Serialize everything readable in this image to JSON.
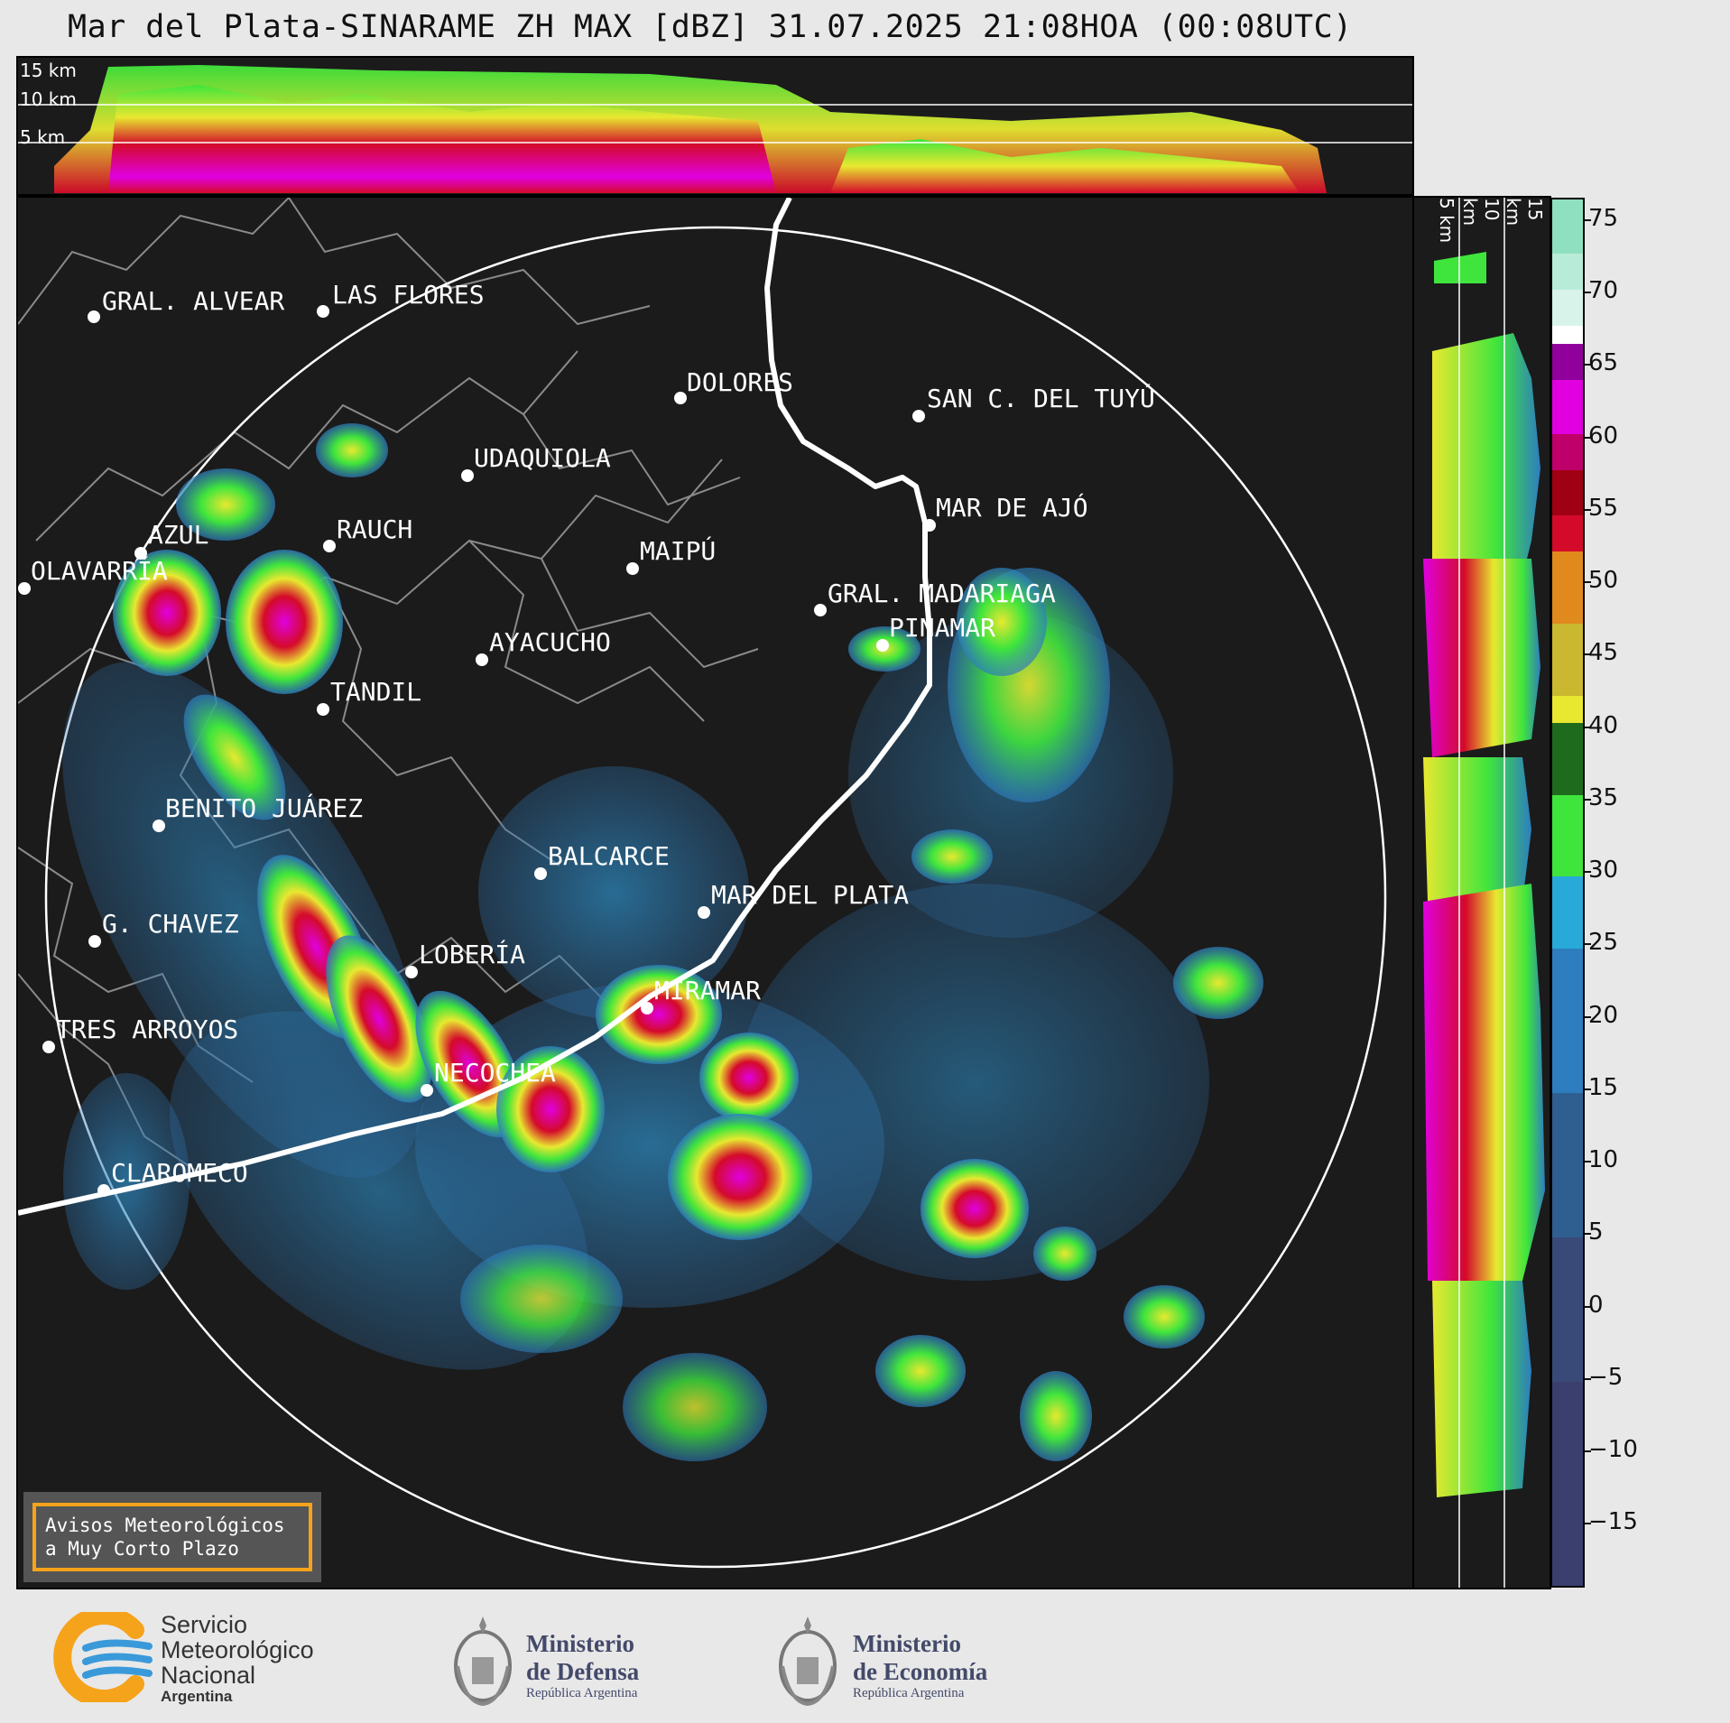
{
  "title": "Mar del Plata-SINARAME ZH MAX [dBZ] 31.07.2025 21:08HOA (00:08UTC)",
  "top_panel": {
    "altitude_labels": [
      "15 km",
      "10 km",
      "5 km"
    ]
  },
  "side_panel": {
    "altitude_labels": [
      "5 km",
      "10 km",
      "15 km"
    ]
  },
  "colorbar": {
    "units": "dBZ",
    "ticks": [
      "75",
      "70",
      "65",
      "60",
      "55",
      "50",
      "45",
      "40",
      "35",
      "30",
      "25",
      "20",
      "15",
      "10",
      "5",
      "0",
      "−5",
      "−10",
      "−15"
    ],
    "min": -20,
    "max": 76,
    "colors": {
      "neg": "#3a3f6e",
      "low": "#2e7dbf",
      "mid_low": "#28a9d8",
      "green": "#3fe53c",
      "dark_green": "#1e6b1e",
      "yellow": "#e8e830",
      "orange": "#e08a1e",
      "red": "#d40a2a",
      "magenta": "#e000e0",
      "purple": "#90009a",
      "white": "#ffffff",
      "teal": "#8fe0c0"
    }
  },
  "cities": [
    {
      "name": "GRAL. ALVEAR"
    },
    {
      "name": "LAS FLORES"
    },
    {
      "name": "DOLORES"
    },
    {
      "name": "SAN C. DEL TUYÚ"
    },
    {
      "name": "UDAQUIOLA"
    },
    {
      "name": "MAR DE AJÓ"
    },
    {
      "name": "AZUL"
    },
    {
      "name": "RAUCH"
    },
    {
      "name": "MAIPÚ"
    },
    {
      "name": "OLAVARRÍA"
    },
    {
      "name": "GRAL. MADARIAGA"
    },
    {
      "name": "PINAMAR"
    },
    {
      "name": "AYACUCHO"
    },
    {
      "name": "TANDIL"
    },
    {
      "name": "BENITO JUÁREZ"
    },
    {
      "name": "BALCARCE"
    },
    {
      "name": "MAR DEL PLATA"
    },
    {
      "name": "G. CHAVEZ"
    },
    {
      "name": "LOBERÍA"
    },
    {
      "name": "MIRAMAR"
    },
    {
      "name": "TRES ARROYOS"
    },
    {
      "name": "NECOCHEA"
    },
    {
      "name": "CLAROMECO"
    }
  ],
  "avisos": {
    "line1": "Avisos Meteorológicos",
    "line2": "a Muy Corto Plazo"
  },
  "footer": {
    "smn": {
      "line1": "Servicio",
      "line2": "Meteorológico",
      "line3": "Nacional",
      "line4": "Argentina"
    },
    "defensa": {
      "line1": "Ministerio",
      "line2": "de Defensa",
      "line3": "República Argentina"
    },
    "economia": {
      "line1": "Ministerio",
      "line2": "de Economía",
      "line3": "República Argentina"
    }
  }
}
